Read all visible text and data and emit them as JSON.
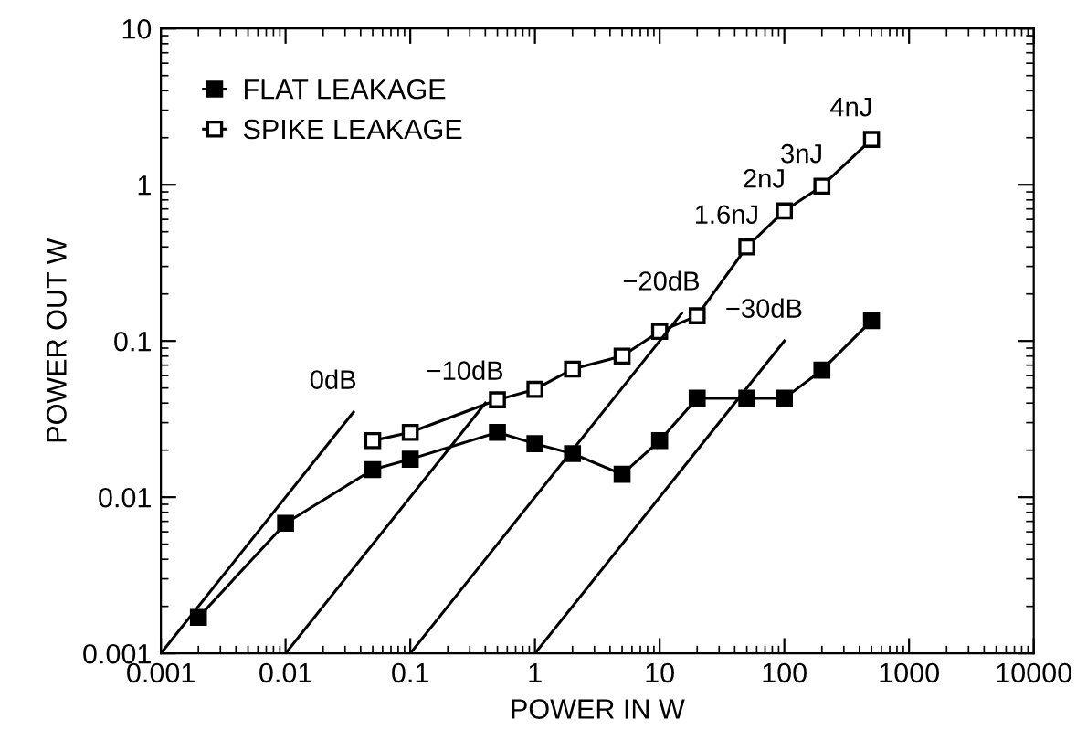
{
  "chart_data": {
    "type": "line",
    "xlabel": "POWER IN W",
    "ylabel": "POWER OUT W",
    "log": "xy",
    "xlim": [
      0.001,
      10000
    ],
    "ylim": [
      0.001,
      10
    ],
    "xticks": [
      {
        "value": 0.001,
        "label": "0.001"
      },
      {
        "value": 0.01,
        "label": "0.01"
      },
      {
        "value": 0.1,
        "label": "0.1"
      },
      1,
      10,
      100,
      1000,
      10000
    ],
    "yticks": [
      {
        "value": 0.001,
        "label": "0.001"
      },
      {
        "value": 0.01,
        "label": "0.01"
      },
      {
        "value": 0.1,
        "label": "0.1"
      },
      1,
      10
    ],
    "grid": false,
    "legend": "top left",
    "series": [
      {
        "name": "FLAT LEAKAGE",
        "color": "#000000",
        "marker": "square",
        "x": [
          0.002,
          0.01,
          0.05,
          0.1,
          0.5,
          1,
          2,
          5,
          10,
          20,
          50,
          100,
          200,
          500
        ],
        "values": [
          0.0017,
          0.0068,
          0.015,
          0.0175,
          0.026,
          0.022,
          0.019,
          0.014,
          0.023,
          0.043,
          0.043,
          0.043,
          0.065,
          0.135
        ]
      },
      {
        "name": "SPIKE LEAKAGE",
        "color": "#000000",
        "marker": "square",
        "x": [
          0.05,
          0.1,
          0.5,
          1,
          2,
          5,
          10,
          20,
          50,
          100,
          200,
          500
        ],
        "values": [
          0.023,
          0.026,
          0.042,
          0.049,
          0.066,
          0.08,
          0.115,
          0.145,
          0.4,
          0.68,
          0.98,
          1.95
        ]
      },
      {
        "color": "#000000",
        "marker": "none",
        "x": [
          0.001,
          0.035
        ],
        "values": [
          0.001,
          0.035
        ]
      },
      {
        "color": "#000000",
        "marker": "none",
        "x": [
          0.01,
          0.4
        ],
        "values": [
          0.001,
          0.04
        ]
      },
      {
        "color": "#000000",
        "marker": "none",
        "x": [
          0.1,
          15
        ],
        "values": [
          0.001,
          0.15
        ]
      },
      {
        "color": "#000000",
        "marker": "none",
        "x": [
          1,
          100
        ],
        "values": [
          0.001,
          0.1
        ]
      }
    ],
    "annotations": [
      {
        "text": "0dB",
        "x": 0.035,
        "y": 0.035
      },
      {
        "text": "−10dB",
        "x": 0.4,
        "y": 0.04
      },
      {
        "text": "−20dB",
        "x": 15,
        "y": 0.15
      },
      {
        "text": "−30dB",
        "x": 100,
        "y": 0.1
      },
      {
        "text": "1.6nJ",
        "x": 50,
        "y": 0.4
      },
      {
        "text": "2nJ",
        "x": 100,
        "y": 0.68
      },
      {
        "text": "3nJ",
        "x": 200,
        "y": 0.98
      },
      {
        "text": "4nJ",
        "x": 500,
        "y": 1.95
      }
    ]
  }
}
